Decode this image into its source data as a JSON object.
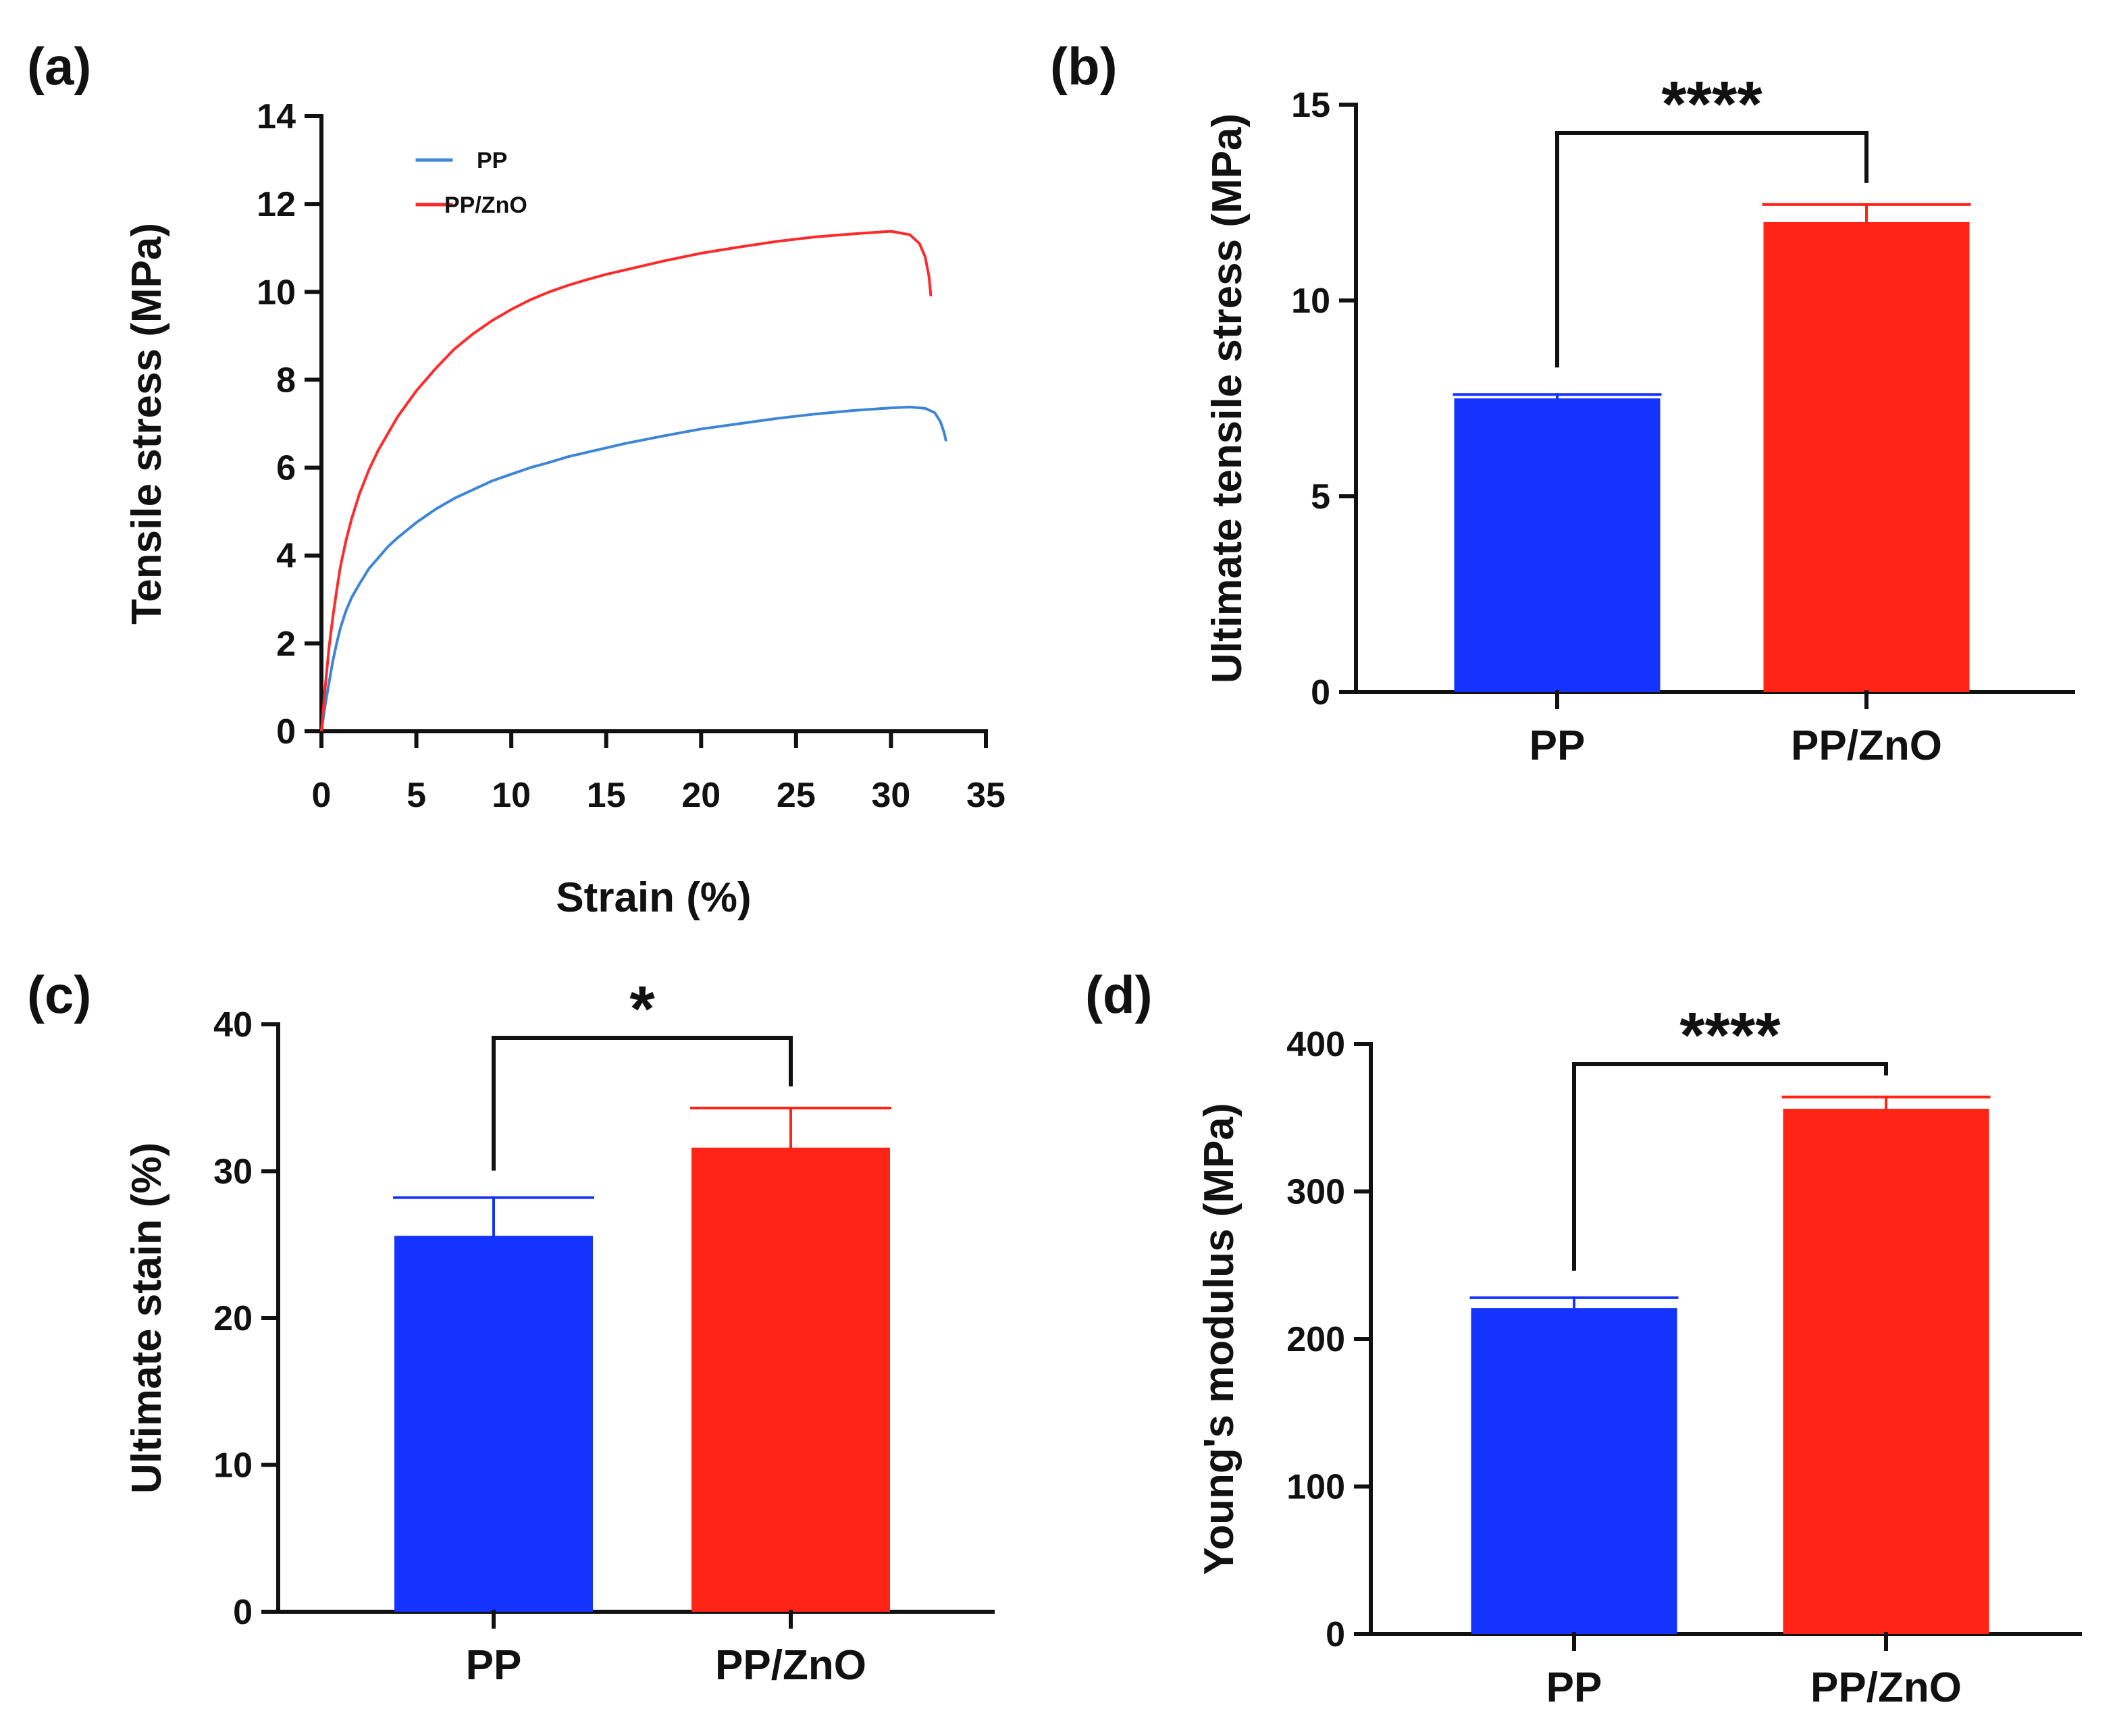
{
  "figure": {
    "panels": [
      "(a)",
      "(b)",
      "(c)",
      "(d)"
    ]
  },
  "colors": {
    "pp": "#1533ff",
    "pp_zno": "#ff2416",
    "pp_line": "#3d85d6",
    "pp_zno_line": "#ff2a2a",
    "axis": "#111111"
  },
  "chart_data": [
    {
      "type": "line",
      "panel": "(a)",
      "title": "",
      "xlabel": "Strain (%)",
      "ylabel": "Tensile stress (MPa)",
      "xlim": [
        0,
        35
      ],
      "ylim": [
        0,
        14
      ],
      "xticks": [
        0,
        5,
        10,
        15,
        20,
        25,
        30,
        35
      ],
      "yticks": [
        0,
        2,
        4,
        6,
        8,
        10,
        12,
        14
      ],
      "legend_position": "top-left",
      "series": [
        {
          "name": "PP",
          "color_key": "pp_line",
          "x": [
            0,
            0.2,
            0.4,
            0.6,
            0.8,
            1,
            1.3,
            1.6,
            2,
            2.5,
            3,
            3.5,
            4,
            5,
            6,
            7,
            8,
            9,
            10,
            11,
            12,
            13,
            14,
            15,
            16,
            18,
            20,
            22,
            24,
            26,
            28,
            30,
            31,
            31.8,
            32.3,
            32.6,
            32.8,
            32.9
          ],
          "y": [
            0,
            0.6,
            1.1,
            1.6,
            2.0,
            2.35,
            2.75,
            3.05,
            3.35,
            3.7,
            3.95,
            4.2,
            4.4,
            4.75,
            5.05,
            5.3,
            5.5,
            5.7,
            5.85,
            6.0,
            6.12,
            6.25,
            6.35,
            6.45,
            6.55,
            6.72,
            6.88,
            7.0,
            7.12,
            7.22,
            7.3,
            7.36,
            7.38,
            7.35,
            7.25,
            7.05,
            6.8,
            6.6
          ]
        },
        {
          "name": "PP/ZnO",
          "color_key": "pp_zno_line",
          "x": [
            0,
            0.2,
            0.4,
            0.6,
            0.8,
            1,
            1.3,
            1.6,
            2,
            2.5,
            3,
            4,
            5,
            6,
            7,
            8,
            9,
            10,
            11,
            12,
            13,
            14,
            15,
            16,
            18,
            20,
            22,
            24,
            26,
            28,
            30,
            31,
            31.5,
            31.8,
            32.0,
            32.1
          ],
          "y": [
            0,
            1.0,
            1.9,
            2.6,
            3.2,
            3.75,
            4.35,
            4.85,
            5.4,
            5.95,
            6.4,
            7.15,
            7.75,
            8.25,
            8.7,
            9.05,
            9.35,
            9.6,
            9.82,
            10.0,
            10.15,
            10.28,
            10.4,
            10.5,
            10.7,
            10.88,
            11.02,
            11.15,
            11.25,
            11.32,
            11.38,
            11.3,
            11.1,
            10.8,
            10.35,
            9.9
          ]
        }
      ]
    },
    {
      "type": "bar",
      "panel": "(b)",
      "title": "",
      "xlabel": "",
      "ylabel": "Ultimate tensile stress (MPa)",
      "categories": [
        "PP",
        "PP/ZnO"
      ],
      "values": [
        7.5,
        12.0
      ],
      "errors": [
        0.1,
        0.45
      ],
      "ylim": [
        0,
        15
      ],
      "yticks": [
        0,
        5,
        10,
        15
      ],
      "significance": "****"
    },
    {
      "type": "bar",
      "panel": "(c)",
      "title": "",
      "xlabel": "",
      "ylabel": "Ultimate stain (%)",
      "categories": [
        "PP",
        "PP/ZnO"
      ],
      "values": [
        25.6,
        31.6
      ],
      "errors": [
        2.6,
        2.7
      ],
      "ylim": [
        0,
        40
      ],
      "yticks": [
        0,
        10,
        20,
        30,
        40
      ],
      "significance": "*"
    },
    {
      "type": "bar",
      "panel": "(d)",
      "title": "",
      "xlabel": "",
      "ylabel": "Young's modulus (MPa)",
      "categories": [
        "PP",
        "PP/ZnO"
      ],
      "values": [
        221,
        356
      ],
      "errors": [
        7,
        8
      ],
      "ylim": [
        0,
        400
      ],
      "yticks": [
        0,
        100,
        200,
        300,
        400
      ],
      "significance": "****"
    }
  ]
}
